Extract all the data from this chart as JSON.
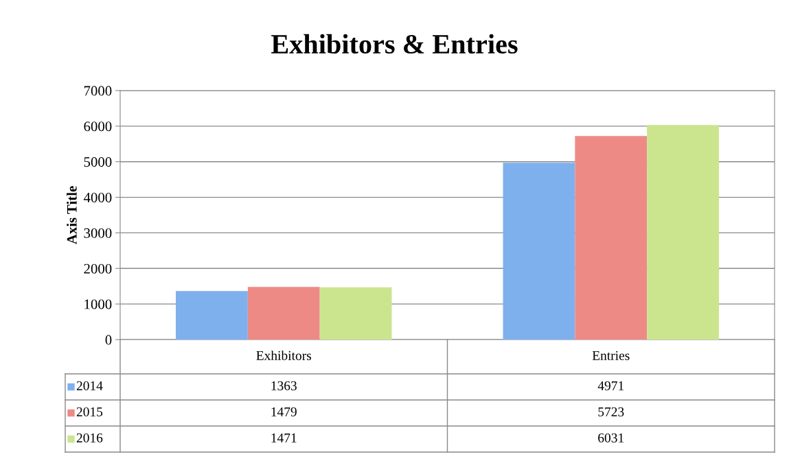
{
  "chart_data": {
    "type": "bar",
    "title": "Exhibitors & Entries",
    "ylabel": "Axis Title",
    "categories": [
      "Exhibitors",
      "Entries"
    ],
    "series": [
      {
        "name": "2014",
        "color": "#7fb0ee",
        "values": [
          1363,
          4971
        ]
      },
      {
        "name": "2015",
        "color": "#ee8a86",
        "values": [
          1479,
          5723
        ]
      },
      {
        "name": "2016",
        "color": "#cbe58f",
        "values": [
          1471,
          6031
        ]
      }
    ],
    "ylim": [
      0,
      7000
    ],
    "yticks": [
      0,
      1000,
      2000,
      3000,
      4000,
      5000,
      6000,
      7000
    ],
    "grid": "y",
    "legend": "bottom",
    "data_labels": true
  }
}
